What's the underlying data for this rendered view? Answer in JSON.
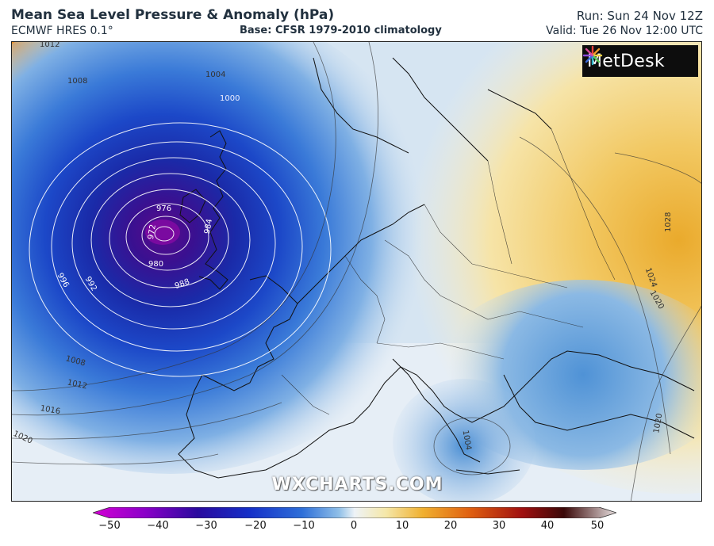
{
  "header": {
    "title": "Mean Sea Level Pressure & Anomaly (hPa)",
    "model": "ECMWF HRES 0.1°",
    "base": "Base: CFSR 1979-2010 climatology",
    "run": "Run: Sun 24 Nov 12Z",
    "valid": "Valid: Tue 26 Nov 12:00 UTC"
  },
  "logo": {
    "text": "MetDesk",
    "icon": "metdesk-burst-icon"
  },
  "watermark": "WXCHARTS.COM",
  "isobar_labels": [
    "1012",
    "1008",
    "1004",
    "1000",
    "976",
    "972",
    "984",
    "980",
    "988",
    "996",
    "992",
    "1008",
    "1012",
    "1016",
    "1020",
    "1028",
    "1024",
    "1020",
    "1004",
    "1020"
  ],
  "colorbar": {
    "ticks": [
      "−50",
      "−40",
      "−30",
      "−20",
      "−10",
      "0",
      "10",
      "20",
      "30",
      "40",
      "50"
    ],
    "colors": [
      "#d400d4",
      "#8a00c8",
      "#2a0a9e",
      "#1530c8",
      "#2e6fd8",
      "#8fbfe8",
      "#eef3f7",
      "#f5e7a8",
      "#f0b030",
      "#e06010",
      "#a01010",
      "#3a0808",
      "#e8e0e0"
    ]
  },
  "map": {
    "low_center_anomaly": "-40",
    "colors": {
      "deep_low": "#3a1090",
      "low": "#1538c8",
      "mid": "#4f8fdc",
      "light": "#bcd6ee",
      "neutral": "#eef3f7",
      "warm": "#f2d27a",
      "hot": "#e89a25"
    }
  }
}
